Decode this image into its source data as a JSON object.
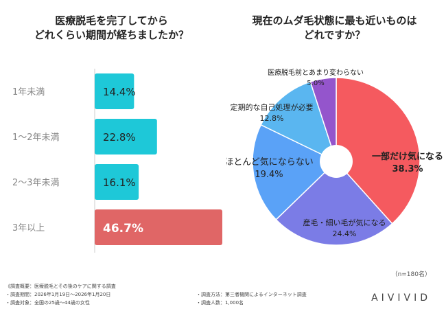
{
  "chart_data": [
    {
      "type": "bar",
      "orientation": "horizontal",
      "title": [
        "医療脱毛を完了してから",
        "どれくらい期間が経ちましたか？"
      ],
      "categories": [
        "1年未満",
        "1〜2年未満",
        "2〜3年未満",
        "3年以上"
      ],
      "values": [
        14.4,
        22.8,
        16.1,
        46.7
      ],
      "value_labels": [
        "14.4%",
        "22.8%",
        "16.1%",
        "46.7%"
      ],
      "unit": "%",
      "xlim": [
        0,
        46.7
      ],
      "colors": [
        "#1ec8d8",
        "#1ec8d8",
        "#1ec8d8",
        "#e06666"
      ]
    },
    {
      "type": "pie",
      "donut": true,
      "title": [
        "現在のムダ毛状態に最も近いものは",
        "どれですか？"
      ],
      "slices": [
        {
          "label": "一部だけ気になる",
          "value": 38.3,
          "value_label": "38.3%",
          "color": "#f55a5f"
        },
        {
          "label": "産毛・細い毛が気になる",
          "value": 24.4,
          "value_label": "24.4%",
          "color": "#7b7ce6"
        },
        {
          "label": "ほとんど気にならない",
          "value": 19.4,
          "value_label": "19.4%",
          "color": "#5aa2f7"
        },
        {
          "label": "定期的な自己処理が必要",
          "value": 12.8,
          "value_label": "12.8%",
          "color": "#5ab6f0"
        },
        {
          "label": "医療脱毛前とあまり変わらない",
          "value": 5.0,
          "value_label": "5.0%",
          "color": "#9455cc"
        }
      ]
    }
  ],
  "sample_size": "（n=180名）",
  "footer": {
    "left": [
      "《調査概要：医療脱毛とその後のケアに関する調査",
      "・調査期間：2026年1月19日〜2026年1月20日",
      "・調査対象：全国の25歳〜44歳の女性"
    ],
    "right": [
      "・調査方法：第三者機関によるインターネット調査",
      "・調査人数：1,000名"
    ]
  },
  "brand": "AIVIVID"
}
